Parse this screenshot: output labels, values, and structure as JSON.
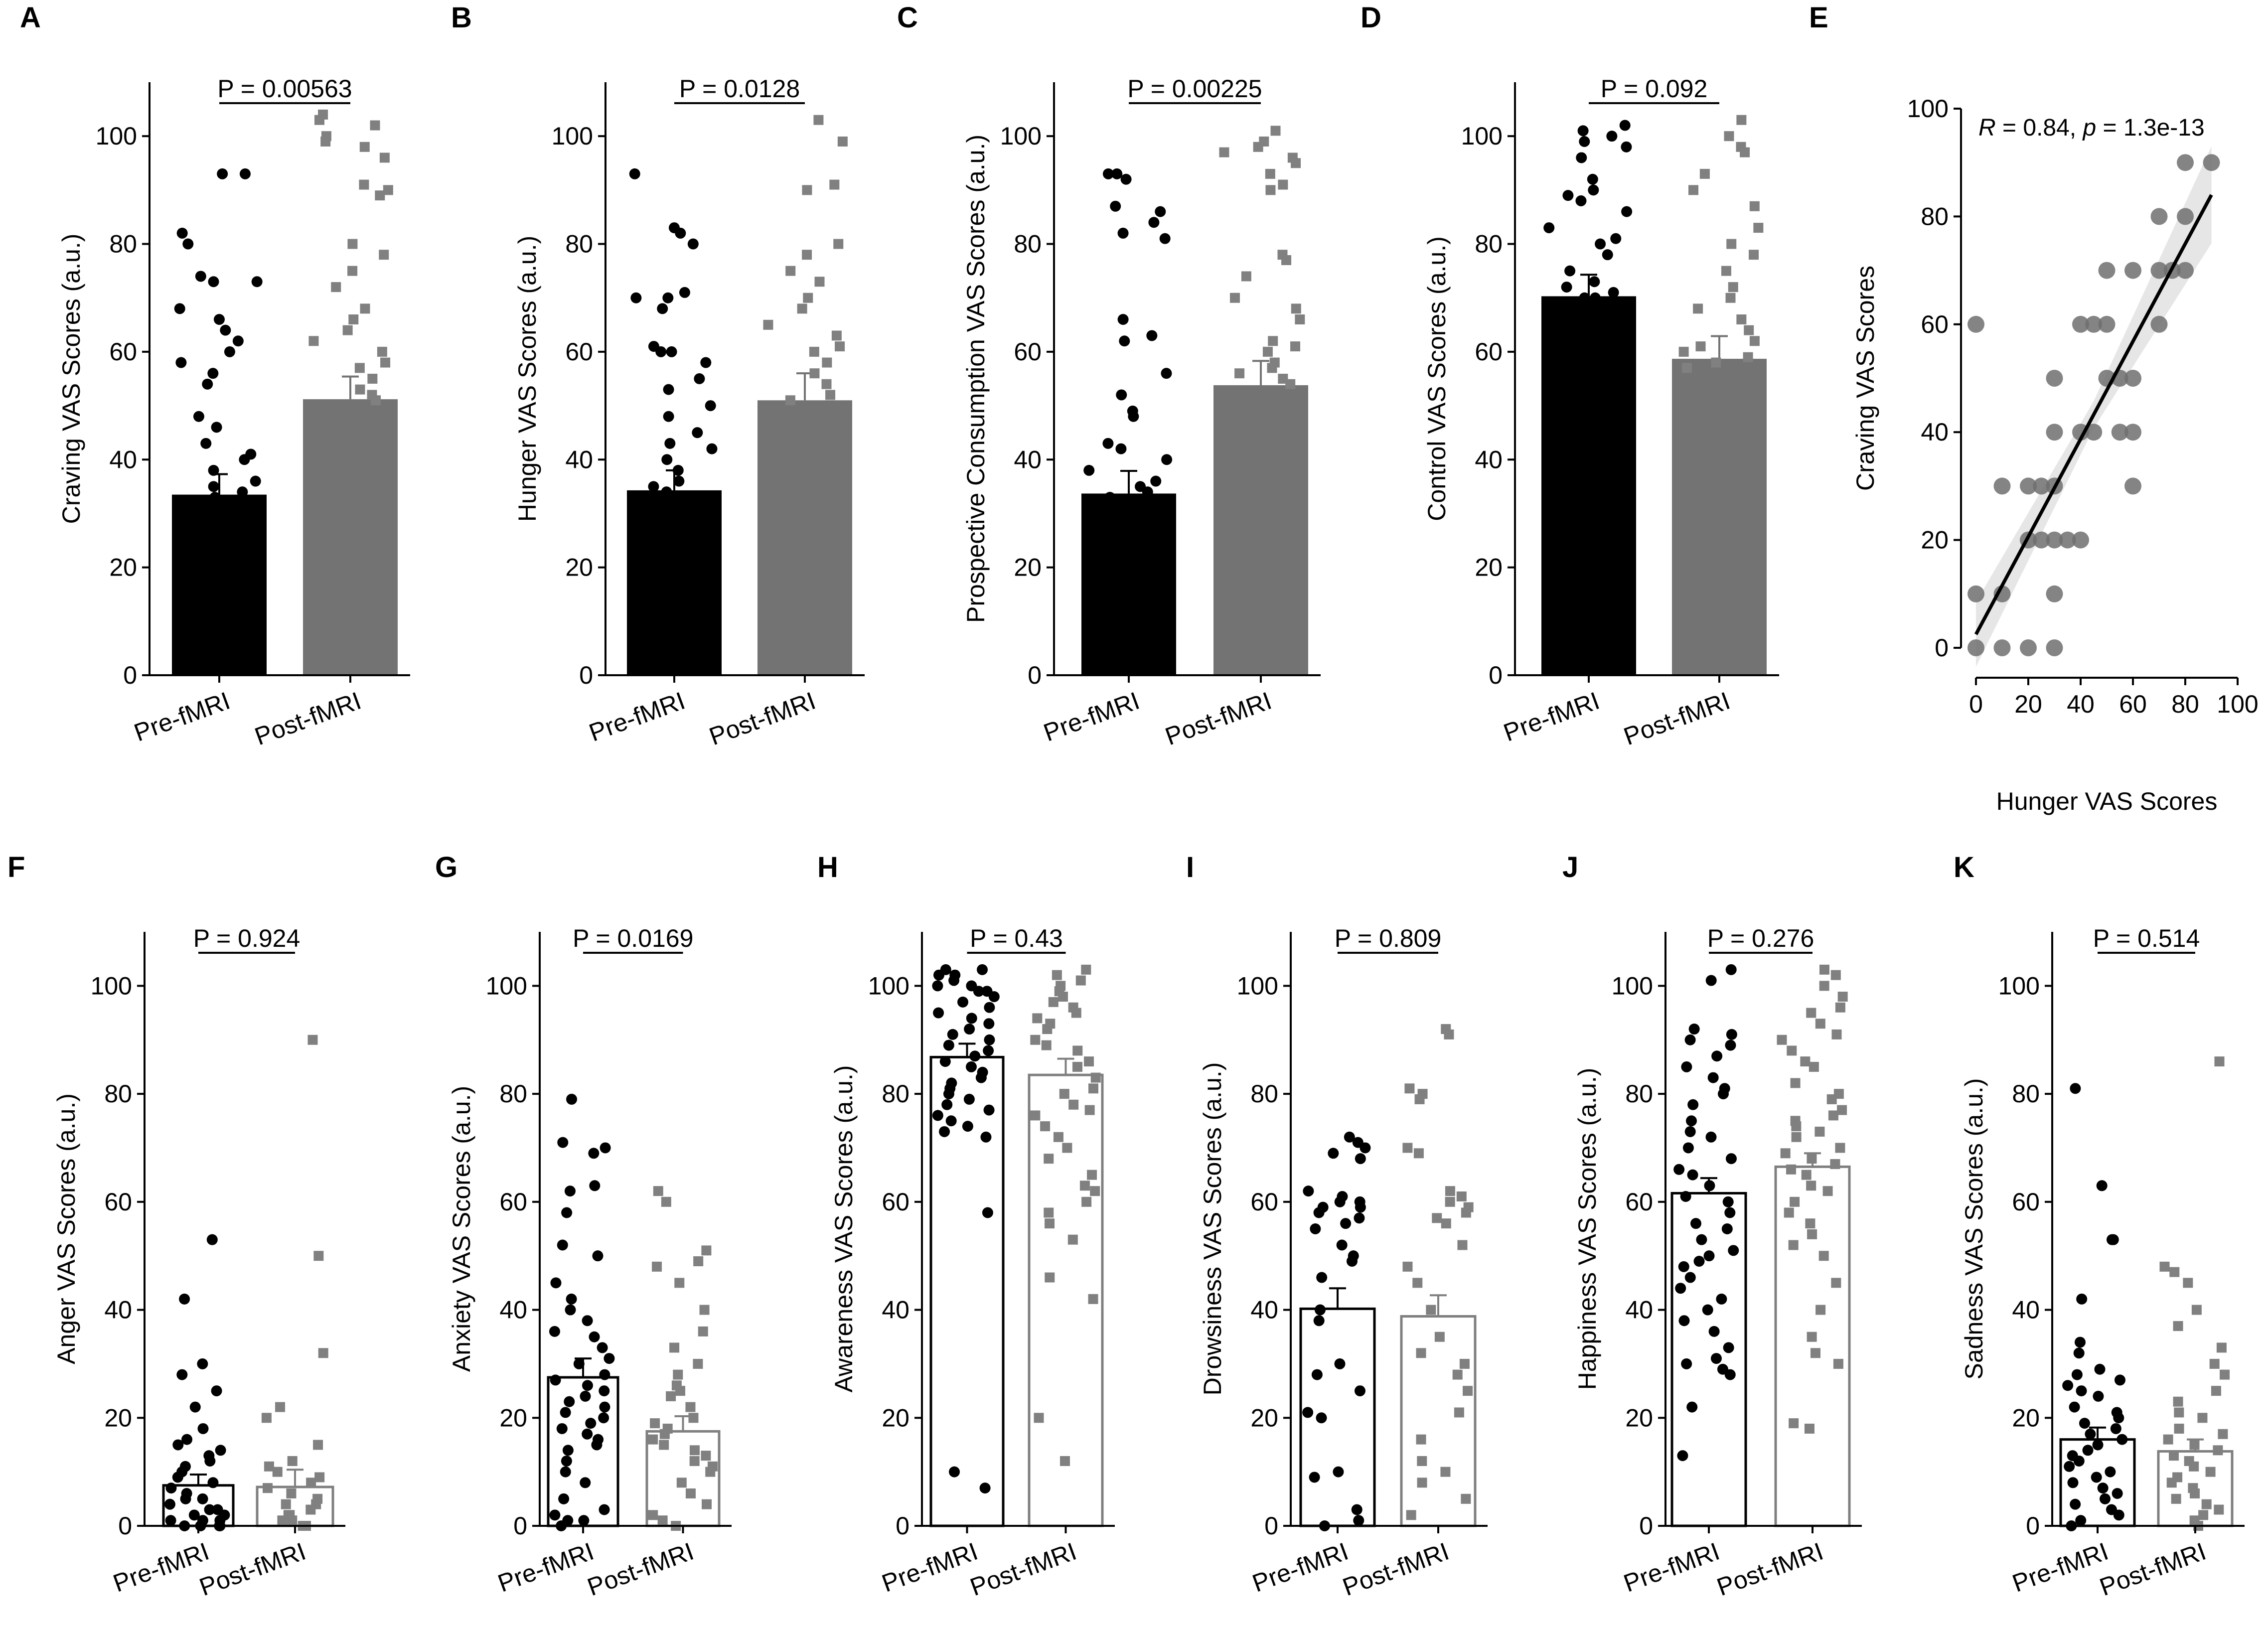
{
  "figure": {
    "panels": [
      "A",
      "B",
      "C",
      "D",
      "E",
      "F",
      "G",
      "H",
      "I",
      "J",
      "K"
    ]
  },
  "chart_data": [
    {
      "panel": "A",
      "type": "bar",
      "style": "filled",
      "categories": [
        "Pre-fMRI",
        "Post-fMRI"
      ],
      "values": [
        33.5,
        51.2
      ],
      "errors": [
        3.8,
        4.2
      ],
      "ylabel": "Craving VAS Scores (a.u.)",
      "ylim": [
        0,
        110
      ],
      "yticks": [
        0,
        20,
        40,
        60,
        80,
        100
      ],
      "p_label": "P = 0.00563",
      "points": [
        [
          93,
          93,
          82,
          80,
          74,
          73,
          73,
          68,
          66,
          64,
          62,
          60,
          58,
          56,
          54,
          48,
          46,
          43,
          41,
          40,
          38,
          36,
          35,
          34,
          33
        ],
        [
          104,
          103,
          102,
          100,
          99,
          98,
          96,
          91,
          90,
          89,
          80,
          78,
          75,
          72,
          68,
          66,
          64,
          62,
          60,
          58,
          57,
          55,
          53,
          52,
          51
        ]
      ]
    },
    {
      "panel": "B",
      "type": "bar",
      "style": "filled",
      "categories": [
        "Pre-fMRI",
        "Post-fMRI"
      ],
      "values": [
        34.3,
        51.0
      ],
      "errors": [
        3.7,
        5.0
      ],
      "ylabel": "Hunger VAS Scores (a.u.)",
      "ylim": [
        0,
        110
      ],
      "yticks": [
        0,
        20,
        40,
        60,
        80,
        100
      ],
      "p_label": "P = 0.0128",
      "points": [
        [
          93,
          83,
          82,
          80,
          71,
          70,
          70,
          68,
          61,
          60,
          60,
          58,
          55,
          53,
          50,
          48,
          45,
          43,
          42,
          40,
          38,
          36,
          35,
          34,
          33
        ],
        [
          103,
          99,
          91,
          90,
          80,
          78,
          75,
          73,
          70,
          68,
          65,
          63,
          61,
          60,
          58,
          56,
          54,
          52,
          51
        ]
      ]
    },
    {
      "panel": "C",
      "type": "bar",
      "style": "filled",
      "categories": [
        "Pre-fMRI",
        "Post-fMRI"
      ],
      "values": [
        33.7,
        53.8
      ],
      "errors": [
        4.2,
        4.5
      ],
      "ylabel": "Prospective Consumption VAS Scores (a.u.)",
      "ylim": [
        0,
        110
      ],
      "yticks": [
        0,
        20,
        40,
        60,
        80,
        100
      ],
      "p_label": "P = 0.00225",
      "points": [
        [
          93,
          93,
          92,
          87,
          86,
          84,
          82,
          81,
          66,
          63,
          62,
          56,
          52,
          49,
          48,
          43,
          42,
          40,
          38,
          36,
          35,
          34,
          33
        ],
        [
          101,
          99,
          98,
          97,
          96,
          95,
          93,
          91,
          90,
          78,
          77,
          74,
          70,
          68,
          66,
          62,
          61,
          60,
          58,
          57,
          56,
          55,
          54
        ]
      ]
    },
    {
      "panel": "D",
      "type": "bar",
      "style": "filled",
      "categories": [
        "Pre-fMRI",
        "Post-fMRI"
      ],
      "values": [
        70.3,
        58.7
      ],
      "errors": [
        4.0,
        4.2
      ],
      "ylabel": "Control VAS Scores (a.u.)",
      "ylim": [
        0,
        110
      ],
      "yticks": [
        0,
        20,
        40,
        60,
        80,
        100
      ],
      "p_label": "P = 0.092",
      "points": [
        [
          102,
          101,
          100,
          99,
          98,
          96,
          92,
          90,
          89,
          88,
          86,
          83,
          81,
          80,
          78,
          75,
          73,
          72,
          71,
          70,
          70
        ],
        [
          103,
          100,
          98,
          97,
          93,
          90,
          87,
          83,
          80,
          78,
          75,
          72,
          70,
          68,
          66,
          64,
          62,
          61,
          60,
          59,
          58,
          57
        ]
      ]
    },
    {
      "panel": "E",
      "type": "scatter",
      "xlabel": "Hunger VAS Scores",
      "ylabel": "Craving VAS Scores",
      "xlim": [
        0,
        100
      ],
      "ylim": [
        0,
        100
      ],
      "xticks": [
        0,
        20,
        40,
        60,
        80,
        100
      ],
      "yticks": [
        0,
        20,
        40,
        60,
        80,
        100
      ],
      "annotation": {
        "R": "R",
        "R_value": " = 0.84, ",
        "p": "p",
        "p_value": " = 1.3e-13"
      },
      "fit_line": {
        "x": [
          0,
          90
        ],
        "y": [
          2.5,
          84
        ]
      },
      "points": [
        [
          0,
          60
        ],
        [
          0,
          10
        ],
        [
          0,
          0
        ],
        [
          10,
          30
        ],
        [
          10,
          10
        ],
        [
          10,
          0
        ],
        [
          20,
          30
        ],
        [
          20,
          20
        ],
        [
          20,
          0
        ],
        [
          25,
          30
        ],
        [
          25,
          20
        ],
        [
          30,
          50
        ],
        [
          30,
          40
        ],
        [
          30,
          30
        ],
        [
          30,
          20
        ],
        [
          30,
          10
        ],
        [
          30,
          0
        ],
        [
          35,
          20
        ],
        [
          40,
          60
        ],
        [
          40,
          40
        ],
        [
          40,
          20
        ],
        [
          45,
          60
        ],
        [
          45,
          40
        ],
        [
          50,
          70
        ],
        [
          50,
          60
        ],
        [
          50,
          50
        ],
        [
          55,
          50
        ],
        [
          55,
          40
        ],
        [
          60,
          70
        ],
        [
          60,
          50
        ],
        [
          60,
          40
        ],
        [
          60,
          30
        ],
        [
          70,
          80
        ],
        [
          70,
          70
        ],
        [
          70,
          60
        ],
        [
          75,
          70
        ],
        [
          80,
          90
        ],
        [
          80,
          80
        ],
        [
          80,
          70
        ],
        [
          90,
          90
        ]
      ]
    },
    {
      "panel": "F",
      "type": "bar",
      "style": "open",
      "categories": [
        "Pre-fMRI",
        "Post-fMRI"
      ],
      "values": [
        7.5,
        7.2
      ],
      "errors": [
        2.0,
        3.2
      ],
      "ylabel": "Anger VAS Scores (a.u.)",
      "ylim": [
        0,
        110
      ],
      "yticks": [
        0,
        20,
        40,
        60,
        80,
        100
      ],
      "p_label": "P = 0.924",
      "points": [
        [
          53,
          42,
          30,
          28,
          25,
          22,
          18,
          16,
          15,
          14,
          13,
          12,
          11,
          10,
          9,
          8,
          7,
          6,
          5,
          5,
          4,
          3,
          3,
          2,
          2,
          1,
          1,
          1,
          0,
          0,
          0,
          0
        ],
        [
          90,
          50,
          32,
          22,
          20,
          15,
          12,
          11,
          10,
          9,
          8,
          7,
          6,
          5,
          4,
          4,
          3,
          2,
          2,
          1,
          1,
          0,
          0
        ]
      ]
    },
    {
      "panel": "G",
      "type": "bar",
      "style": "open",
      "categories": [
        "Pre-fMRI",
        "Post-fMRI"
      ],
      "values": [
        27.5,
        17.5
      ],
      "errors": [
        3.5,
        2.8
      ],
      "ylabel": "Anxiety VAS Scores (a.u.)",
      "ylim": [
        0,
        110
      ],
      "yticks": [
        0,
        20,
        40,
        60,
        80,
        100
      ],
      "p_label": "P = 0.0169",
      "points": [
        [
          79,
          71,
          70,
          69,
          63,
          62,
          58,
          52,
          50,
          45,
          42,
          40,
          38,
          36,
          35,
          33,
          31,
          30,
          28,
          27,
          26,
          25,
          24,
          23,
          22,
          21,
          20,
          19,
          18,
          17,
          16,
          15,
          14,
          12,
          10,
          8,
          5,
          3,
          2,
          1,
          1,
          0
        ],
        [
          62,
          60,
          51,
          49,
          48,
          45,
          40,
          36,
          33,
          30,
          28,
          26,
          25,
          24,
          22,
          20,
          19,
          18,
          17,
          16,
          15,
          14,
          13,
          12,
          11,
          10,
          8,
          6,
          4,
          2,
          1,
          0
        ]
      ]
    },
    {
      "panel": "H",
      "type": "bar",
      "style": "open",
      "categories": [
        "Pre-fMRI",
        "Post-fMRI"
      ],
      "values": [
        86.8,
        83.5
      ],
      "errors": [
        2.5,
        3.0
      ],
      "ylabel": "Awareness VAS Scores (a.u.)",
      "ylim": [
        0,
        110
      ],
      "yticks": [
        0,
        20,
        40,
        60,
        80,
        100
      ],
      "p_label": "P = 0.43",
      "points": [
        [
          103,
          103,
          102,
          102,
          101,
          100,
          100,
          99,
          99,
          98,
          97,
          96,
          95,
          94,
          93,
          92,
          91,
          90,
          89,
          88,
          87,
          86,
          85,
          84,
          83,
          82,
          81,
          80,
          79,
          78,
          77,
          76,
          75,
          74,
          73,
          72,
          58,
          10,
          7
        ],
        [
          103,
          102,
          101,
          100,
          99,
          98,
          97,
          96,
          95,
          94,
          93,
          92,
          90,
          89,
          88,
          86,
          85,
          83,
          81,
          80,
          78,
          77,
          76,
          74,
          72,
          70,
          68,
          65,
          63,
          62,
          60,
          58,
          56,
          53,
          46,
          42,
          20,
          12
        ]
      ]
    },
    {
      "panel": "I",
      "type": "bar",
      "style": "open",
      "categories": [
        "Pre-fMRI",
        "Post-fMRI"
      ],
      "values": [
        40.2,
        38.8
      ],
      "errors": [
        3.8,
        3.9
      ],
      "ylabel": "Drowsiness VAS Scores (a.u.)",
      "ylim": [
        0,
        110
      ],
      "yticks": [
        0,
        20,
        40,
        60,
        80,
        100
      ],
      "p_label": "P = 0.809",
      "points": [
        [
          72,
          71,
          70,
          69,
          68,
          62,
          61,
          60,
          60,
          59,
          59,
          58,
          57,
          56,
          55,
          52,
          50,
          49,
          46,
          40,
          38,
          30,
          28,
          25,
          21,
          20,
          10,
          9,
          3,
          1,
          0
        ],
        [
          92,
          91,
          81,
          80,
          79,
          70,
          69,
          62,
          61,
          60,
          59,
          58,
          57,
          56,
          52,
          48,
          45,
          40,
          35,
          32,
          30,
          28,
          25,
          21,
          16,
          12,
          10,
          8,
          5,
          2
        ]
      ]
    },
    {
      "panel": "J",
      "type": "bar",
      "style": "open",
      "categories": [
        "Pre-fMRI",
        "Post-fMRI"
      ],
      "values": [
        61.6,
        66.5
      ],
      "errors": [
        2.8,
        2.5
      ],
      "ylabel": "Happiness VAS Scores (a.u.)",
      "ylim": [
        0,
        110
      ],
      "yticks": [
        0,
        20,
        40,
        60,
        80,
        100
      ],
      "p_label": "P = 0.276",
      "points": [
        [
          103,
          101,
          92,
          91,
          90,
          89,
          87,
          85,
          83,
          81,
          80,
          78,
          75,
          73,
          72,
          70,
          68,
          66,
          65,
          63,
          61,
          60,
          58,
          56,
          55,
          53,
          51,
          50,
          49,
          48,
          46,
          44,
          42,
          40,
          38,
          36,
          33,
          31,
          30,
          29,
          28,
          22,
          13
        ],
        [
          103,
          102,
          100,
          98,
          96,
          95,
          93,
          91,
          90,
          88,
          86,
          85,
          82,
          80,
          79,
          77,
          76,
          75,
          74,
          73,
          72,
          70,
          69,
          68,
          67,
          66,
          65,
          63,
          62,
          60,
          58,
          56,
          54,
          52,
          50,
          45,
          40,
          35,
          32,
          30,
          19,
          18
        ]
      ]
    },
    {
      "panel": "K",
      "type": "bar",
      "style": "open",
      "categories": [
        "Pre-fMRI",
        "Post-fMRI"
      ],
      "values": [
        16.0,
        13.8
      ],
      "errors": [
        2.2,
        2.2
      ],
      "ylabel": "Sadness VAS Scores (a.u.)",
      "ylim": [
        0,
        110
      ],
      "yticks": [
        0,
        20,
        40,
        60,
        80,
        100
      ],
      "p_label": "P = 0.514",
      "points": [
        [
          81,
          63,
          53,
          53,
          42,
          34,
          32,
          29,
          28,
          27,
          26,
          25,
          24,
          22,
          21,
          20,
          19,
          18,
          17,
          16,
          15,
          14,
          13,
          12,
          11,
          10,
          9,
          8,
          7,
          6,
          5,
          4,
          3,
          2,
          1,
          0
        ],
        [
          86,
          48,
          47,
          45,
          40,
          37,
          33,
          30,
          28,
          25,
          23,
          21,
          20,
          18,
          17,
          16,
          15,
          14,
          13,
          12,
          11,
          10,
          9,
          8,
          7,
          6,
          5,
          4,
          3,
          2,
          1,
          0
        ]
      ]
    }
  ]
}
